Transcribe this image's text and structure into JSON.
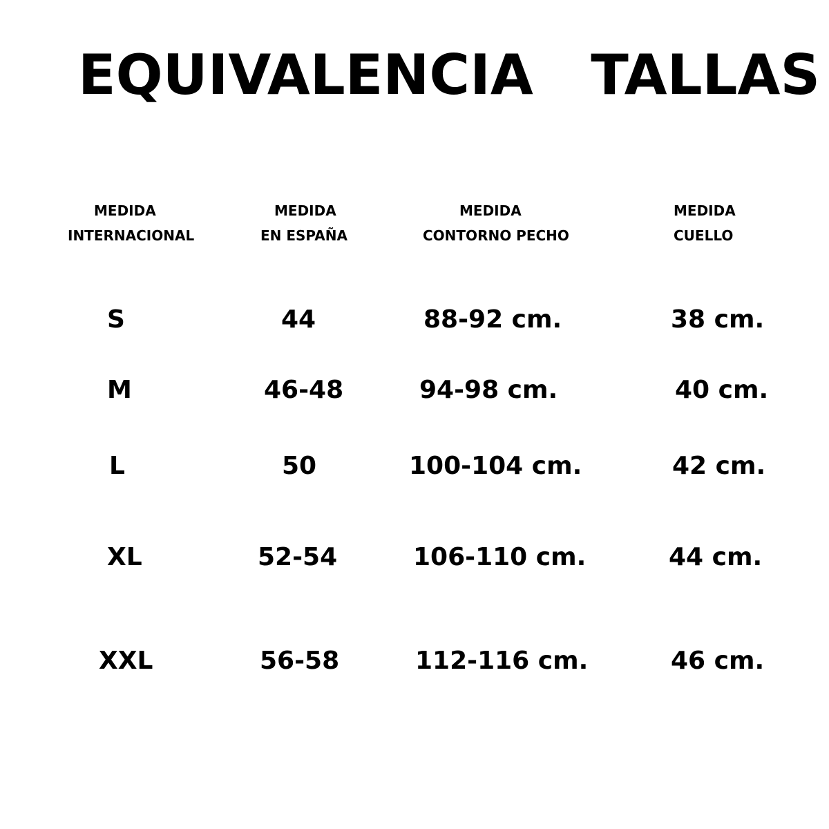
{
  "title": "EQUIVALENCIA   TALLAS",
  "headers": [
    {
      "line1": "MEDIDA",
      "line2": "INTERNACIONAL"
    },
    {
      "line1": "MEDIDA",
      "line2": "EN ESPAÑA"
    },
    {
      "line1": "MEDIDA",
      "line2": "CONTORNO PECHO"
    },
    {
      "line1": "MEDIDA",
      "line2": "CUELLO"
    }
  ],
  "rows": [
    {
      "international": "S",
      "spain": "44",
      "chest": "88-92 cm.",
      "neck": "38 cm."
    },
    {
      "international": "M",
      "spain": "46-48",
      "chest": "94-98 cm.",
      "neck": "40 cm."
    },
    {
      "international": "L",
      "spain": "50",
      "chest": "100-104 cm.",
      "neck": "42 cm."
    },
    {
      "international": "XL",
      "spain": "52-54",
      "chest": "106-110 cm.",
      "neck": "44 cm."
    },
    {
      "international": "XXL",
      "spain": "56-58",
      "chest": "112-116 cm.",
      "neck": "46 cm."
    }
  ]
}
